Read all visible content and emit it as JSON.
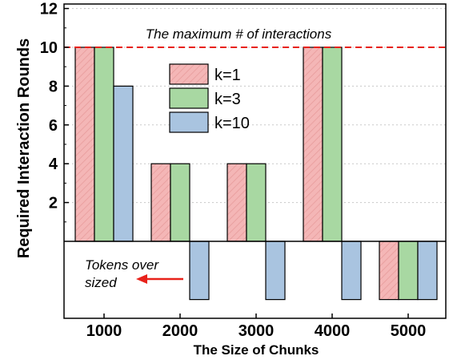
{
  "chart_data": {
    "type": "bar",
    "title": "",
    "xlabel": "The Size of Chunks",
    "ylabel": "Required Interaction Rounds",
    "ylim": [
      -5,
      12.5
    ],
    "yticks": [
      2,
      4,
      6,
      8,
      10,
      12
    ],
    "categories": [
      "1000",
      "2000",
      "3000",
      "4000",
      "5000"
    ],
    "series": [
      {
        "name": "k=1",
        "color": "#f4b6b6",
        "hatch": true,
        "values": [
          10,
          4,
          4,
          10,
          -3
        ]
      },
      {
        "name": "k=3",
        "color": "#a8d8a2",
        "hatch": false,
        "values": [
          10,
          4,
          4,
          10,
          -3
        ]
      },
      {
        "name": "k=10",
        "color": "#a9c4e0",
        "hatch": false,
        "values": [
          8,
          -3,
          -3,
          -3,
          -3
        ]
      }
    ],
    "reference_line": {
      "value": 10,
      "label": "The maximum # of interactions",
      "color": "#e8221b"
    },
    "annotation": {
      "text_line1": "Tokens over",
      "text_line2": "sized",
      "arrow_color": "#e8221b"
    },
    "grid": true,
    "legend": {
      "position": "top-center"
    }
  }
}
